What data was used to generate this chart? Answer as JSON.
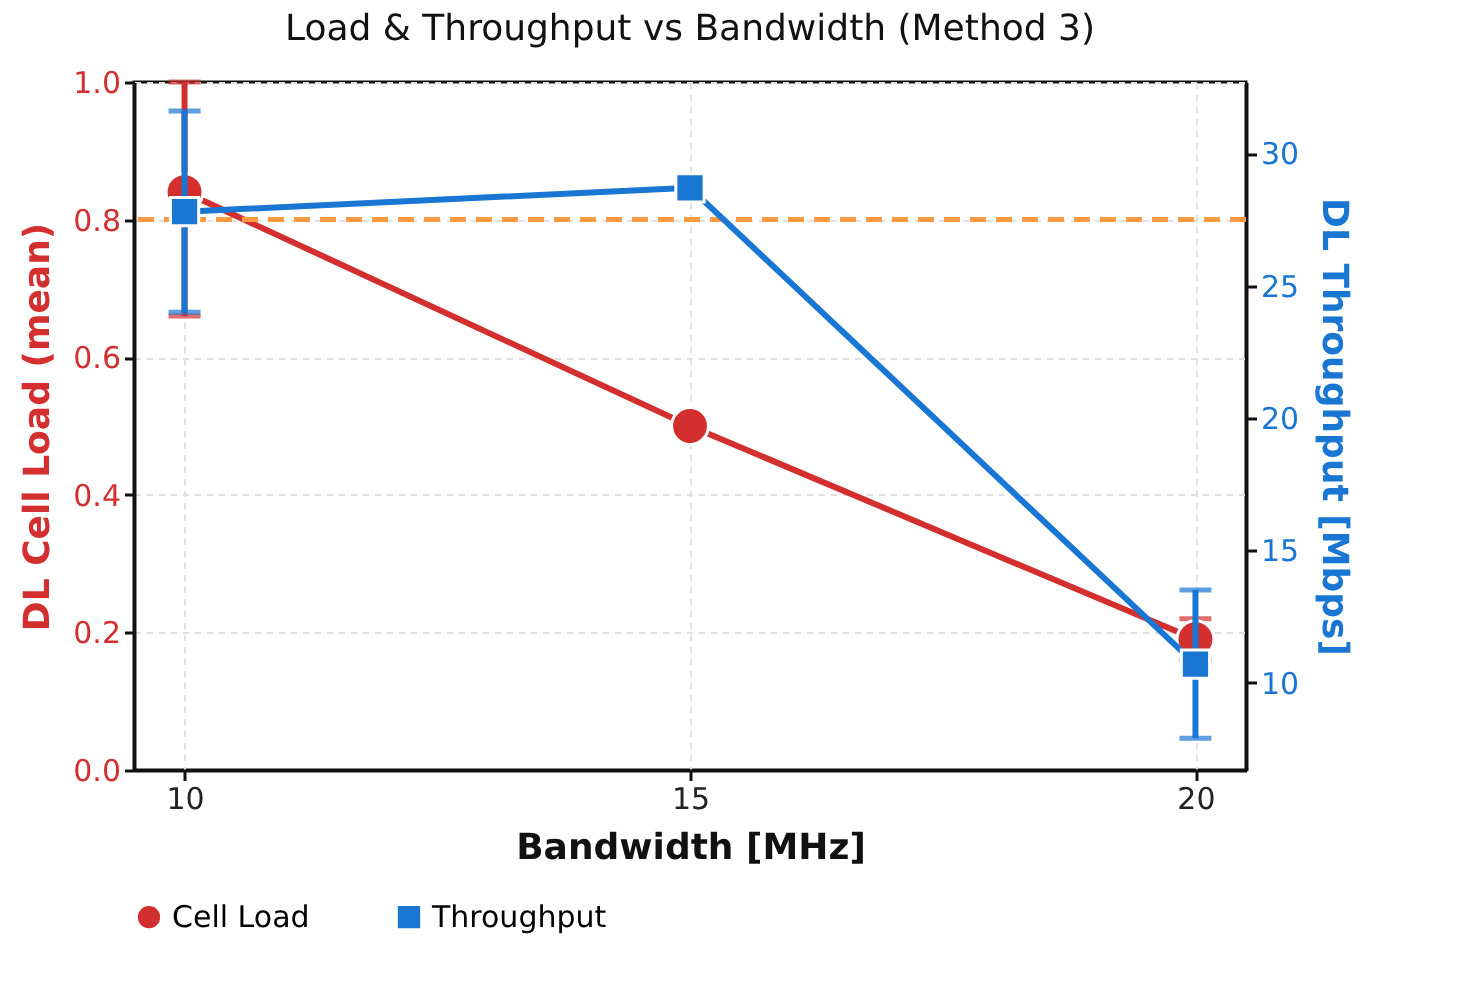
{
  "chart_data": {
    "type": "line",
    "title": "Load & Throughput vs Bandwidth (Method 3)",
    "xlabel": "Bandwidth [MHz]",
    "ylabel": "DL Cell Load (mean)",
    "y2label": "DL Throughput [Mbps]",
    "x": [
      10,
      15,
      20
    ],
    "xlim": [
      9.5,
      20.5
    ],
    "xticks": [
      10,
      15,
      20
    ],
    "ylim": [
      0,
      1
    ],
    "yticks": [
      {
        "value": 0,
        "label": "0.0"
      },
      {
        "value": 0.2,
        "label": "0.2"
      },
      {
        "value": 0.4,
        "label": "0.4"
      },
      {
        "value": 0.6,
        "label": "0.6"
      },
      {
        "value": 0.8,
        "label": "0.8"
      },
      {
        "value": 1,
        "label": "1.0"
      }
    ],
    "y2lim": [
      6.7,
      32.7
    ],
    "y2ticks": [
      10,
      15,
      20,
      25,
      30
    ],
    "series": [
      {
        "name": "Cell Load",
        "color": "#d32f2f",
        "marker": "circle",
        "values": [
          0.84,
          0.5,
          0.19
        ],
        "errors": [
          [
            0.66,
            1.0
          ],
          null,
          0.03
        ]
      },
      {
        "name": "Throughput",
        "color": "#1976d2",
        "marker": "square",
        "axis": "y2",
        "values": [
          27.8,
          28.7,
          10.7
        ],
        "errors": [
          3.8,
          null,
          2.8
        ]
      }
    ],
    "ref_lines": [
      {
        "axis": "y",
        "value": 0.8,
        "color": "#ff9a40",
        "line_style": "dashed"
      }
    ],
    "grid": true,
    "legend": "bottom"
  }
}
